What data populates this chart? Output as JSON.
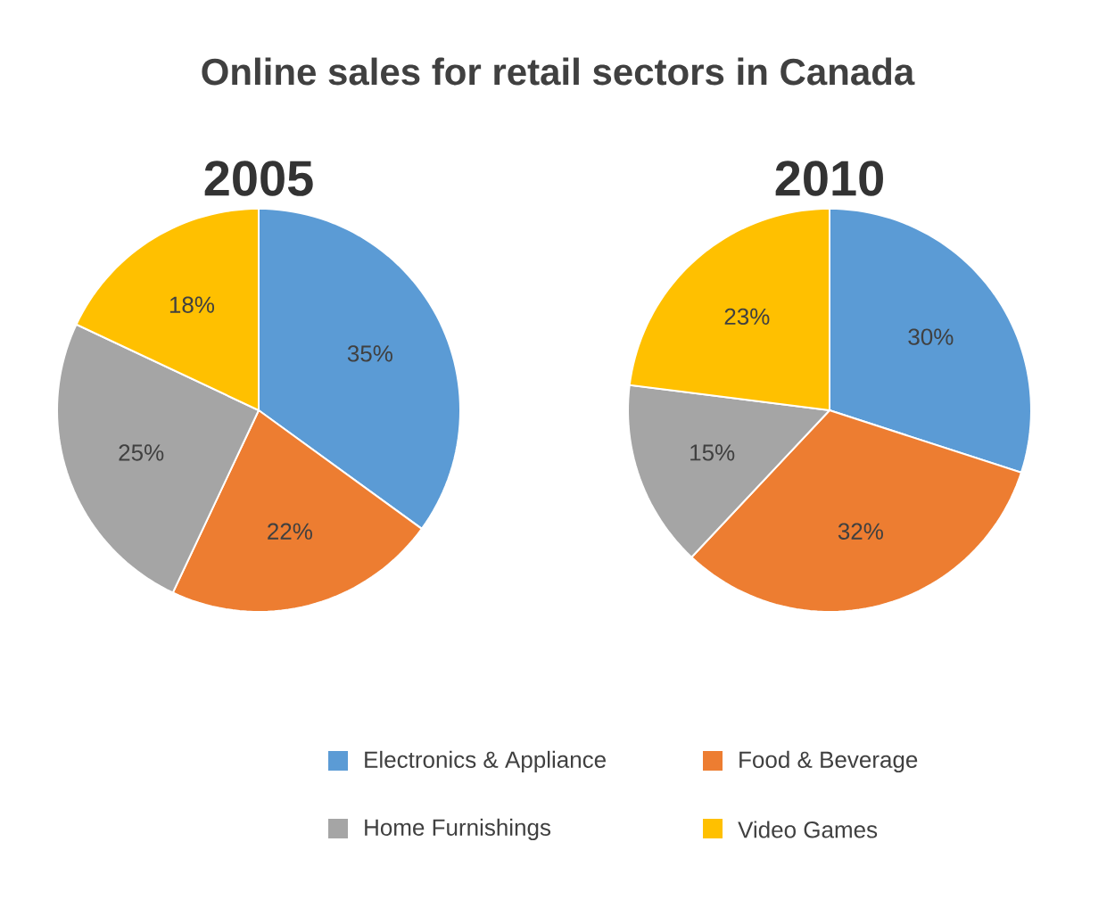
{
  "chart_data": [
    {
      "type": "pie",
      "title": "Online sales for retail sectors in Canada",
      "subtitle": "2005",
      "categories": [
        "Electronics & Appliance",
        "Food & Beverage",
        "Home Furnishings",
        "Video Games"
      ],
      "values": [
        35,
        22,
        25,
        18
      ],
      "colors": [
        "#5b9bd5",
        "#ed7d31",
        "#a5a5a5",
        "#ffc000"
      ],
      "value_labels": [
        "35%",
        "22%",
        "25%",
        "18%"
      ],
      "legend": "bottom"
    },
    {
      "type": "pie",
      "title": "2010",
      "categories": [
        null,
        null,
        null,
        null
      ],
      "values": [
        30,
        32,
        15,
        23
      ],
      "colors": [
        "#5b9bd5",
        "#ed7d31",
        "#a5a5a5",
        "#ffc000"
      ],
      "value_labels": [
        "30%",
        "32%",
        "15%",
        "23%"
      ]
    }
  ]
}
